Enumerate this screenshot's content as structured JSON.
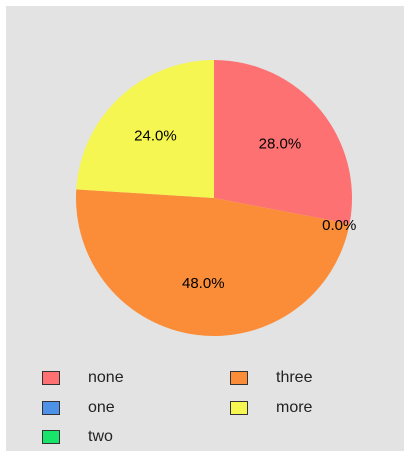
{
  "chart_data": {
    "type": "pie",
    "title": "",
    "categories": [
      "none",
      "one",
      "two",
      "three",
      "more"
    ],
    "values": [
      28.0,
      0.0,
      0.0,
      48.0,
      24.0
    ],
    "colors": [
      "#fd7172",
      "#4d91e8",
      "#18e36b",
      "#fb8d38",
      "#f5f652"
    ],
    "slice_labels": [
      "28.0%",
      "0.0%",
      "0.0%",
      "48.0%",
      "24.0%"
    ],
    "start_angle_deg": 90,
    "direction": "clockwise",
    "legend": {
      "placement": "bottom",
      "items": [
        {
          "label": "none",
          "color": "#fd7172"
        },
        {
          "label": "one",
          "color": "#4d91e8"
        },
        {
          "label": "two",
          "color": "#18e36b"
        },
        {
          "label": "three",
          "color": "#fb8d38"
        },
        {
          "label": "more",
          "color": "#f5f652"
        }
      ]
    }
  }
}
